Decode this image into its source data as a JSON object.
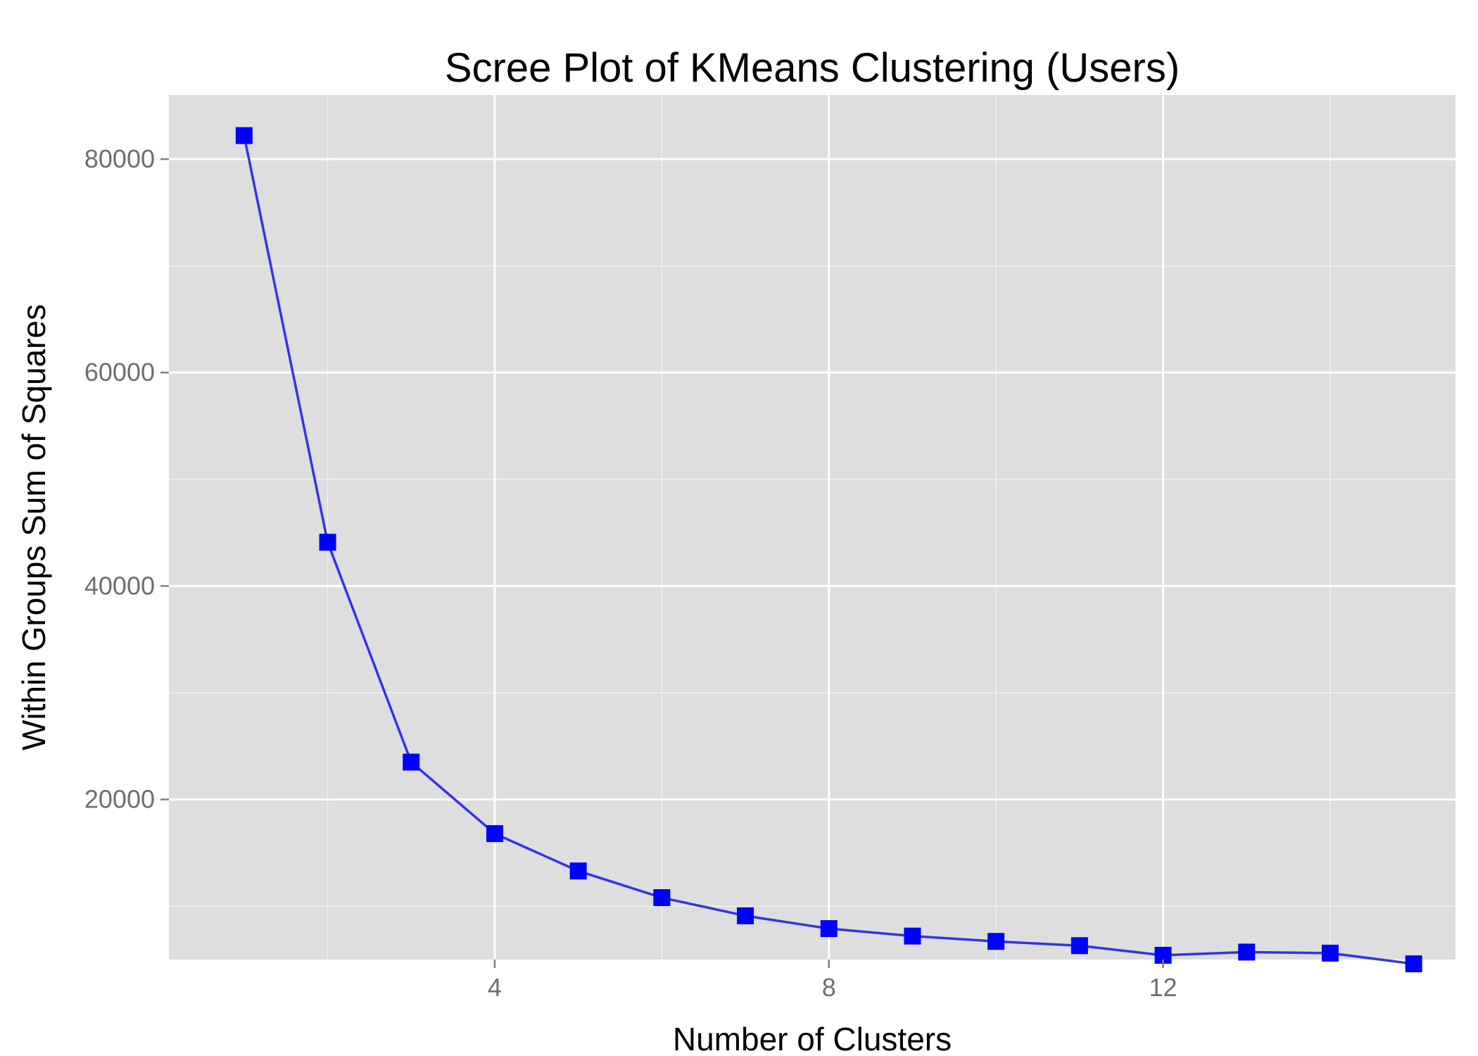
{
  "chart_data": {
    "type": "line",
    "title": "Scree Plot of KMeans Clustering (Users)",
    "xlabel": "Number of Clusters",
    "ylabel": "Within Groups Sum of Squares",
    "xlim": [
      0.1,
      15.5
    ],
    "ylim": [
      5000,
      86000
    ],
    "x_ticks": [
      4,
      8,
      12
    ],
    "x_tick_labels": [
      "4",
      "8",
      "12"
    ],
    "x_minor_ticks": [
      2,
      6,
      10,
      14
    ],
    "y_ticks": [
      20000,
      40000,
      60000,
      80000
    ],
    "y_tick_labels": [
      "20000",
      "40000",
      "60000",
      "80000"
    ],
    "y_minor_ticks": [
      10000,
      30000,
      50000,
      70000
    ],
    "grid": true,
    "legend": "none",
    "series": [
      {
        "x": [
          1,
          2,
          3,
          4,
          5,
          6,
          7,
          8,
          9,
          10,
          11,
          12,
          13,
          14,
          15
        ],
        "y": [
          82200,
          44100,
          23500,
          16800,
          13300,
          10800,
          9100,
          7900,
          7200,
          6700,
          6300,
          5400,
          5700,
          5600,
          4600
        ],
        "line_color": "#3333e6",
        "marker": "square",
        "marker_color": "#0000ff"
      }
    ],
    "colors": {
      "panel": "#dedede",
      "grid_major": "#ffffff",
      "grid_minor": "#efefef",
      "tick_text": "#6e6e6e"
    }
  }
}
